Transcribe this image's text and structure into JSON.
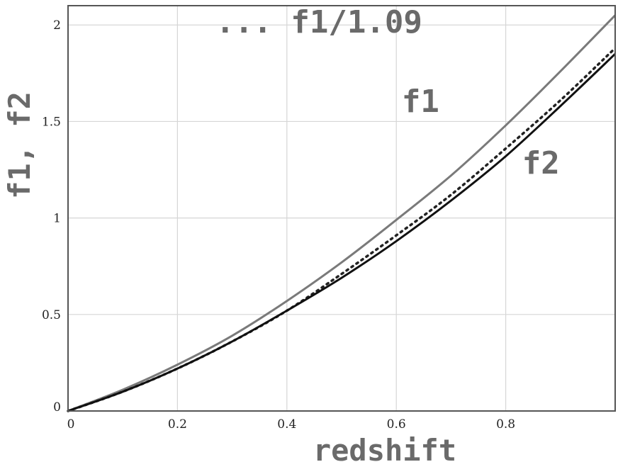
{
  "chart_data": {
    "type": "line",
    "title": "",
    "xlabel": "redshift",
    "ylabel": "f1, f2",
    "xlim": [
      0,
      1
    ],
    "ylim": [
      0,
      2.1
    ],
    "xticks": [
      0,
      0.2,
      0.4,
      0.6,
      0.8
    ],
    "xtick_labels": [
      "0",
      "0.2",
      "0.4",
      "0.6",
      "0.8"
    ],
    "yticks": [
      0,
      0.5,
      1,
      1.5,
      2
    ],
    "ytick_labels": [
      "0",
      "0.5",
      "1",
      "1.5",
      "2"
    ],
    "grid": true,
    "legend": "none",
    "series": [
      {
        "name": "f1",
        "style": "solid",
        "color": "#7a7a7a",
        "x": [
          0,
          0.1,
          0.2,
          0.3,
          0.4,
          0.5,
          0.6,
          0.7,
          0.8,
          0.9,
          1.0
        ],
        "y": [
          0,
          0.11,
          0.24,
          0.39,
          0.57,
          0.77,
          0.99,
          1.22,
          1.48,
          1.76,
          2.05
        ]
      },
      {
        "name": "f1/1.09",
        "style": "dotted",
        "color": "#222222",
        "x": [
          0,
          0.1,
          0.2,
          0.3,
          0.4,
          0.5,
          0.6,
          0.7,
          0.8,
          0.9,
          1.0
        ],
        "y": [
          0,
          0.1,
          0.22,
          0.36,
          0.52,
          0.71,
          0.91,
          1.12,
          1.36,
          1.61,
          1.88
        ]
      },
      {
        "name": "f2",
        "style": "solid",
        "color": "#111111",
        "x": [
          0,
          0.1,
          0.2,
          0.3,
          0.4,
          0.5,
          0.6,
          0.7,
          0.8,
          0.9,
          1.0
        ],
        "y": [
          0,
          0.1,
          0.22,
          0.36,
          0.52,
          0.69,
          0.88,
          1.09,
          1.32,
          1.58,
          1.85
        ]
      }
    ],
    "annotations": [
      {
        "text": "f1",
        "x": 0.61,
        "y": 1.55
      },
      {
        "text": "f2",
        "x": 0.83,
        "y": 1.23
      },
      {
        "text": "... f1/1.09",
        "x": 0.27,
        "y": 1.96
      }
    ]
  }
}
